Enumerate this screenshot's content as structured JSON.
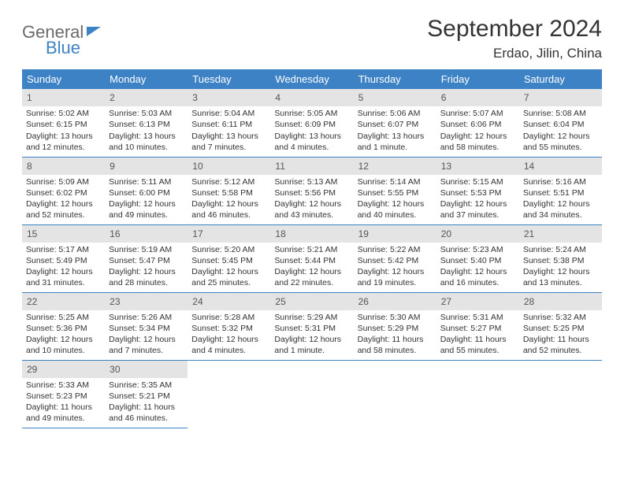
{
  "logo": {
    "line1": "General",
    "line2": "Blue"
  },
  "title": "September 2024",
  "location": "Erdao, Jilin, China",
  "weekday_headers": [
    "Sunday",
    "Monday",
    "Tuesday",
    "Wednesday",
    "Thursday",
    "Friday",
    "Saturday"
  ],
  "header_bg": "#3d82c4",
  "header_fg": "#ffffff",
  "daynum_bg": "#e4e4e4",
  "border_color": "#3d82c4",
  "weeks": [
    [
      {
        "num": "1",
        "sunrise": "Sunrise: 5:02 AM",
        "sunset": "Sunset: 6:15 PM",
        "daylight": "Daylight: 13 hours and 12 minutes."
      },
      {
        "num": "2",
        "sunrise": "Sunrise: 5:03 AM",
        "sunset": "Sunset: 6:13 PM",
        "daylight": "Daylight: 13 hours and 10 minutes."
      },
      {
        "num": "3",
        "sunrise": "Sunrise: 5:04 AM",
        "sunset": "Sunset: 6:11 PM",
        "daylight": "Daylight: 13 hours and 7 minutes."
      },
      {
        "num": "4",
        "sunrise": "Sunrise: 5:05 AM",
        "sunset": "Sunset: 6:09 PM",
        "daylight": "Daylight: 13 hours and 4 minutes."
      },
      {
        "num": "5",
        "sunrise": "Sunrise: 5:06 AM",
        "sunset": "Sunset: 6:07 PM",
        "daylight": "Daylight: 13 hours and 1 minute."
      },
      {
        "num": "6",
        "sunrise": "Sunrise: 5:07 AM",
        "sunset": "Sunset: 6:06 PM",
        "daylight": "Daylight: 12 hours and 58 minutes."
      },
      {
        "num": "7",
        "sunrise": "Sunrise: 5:08 AM",
        "sunset": "Sunset: 6:04 PM",
        "daylight": "Daylight: 12 hours and 55 minutes."
      }
    ],
    [
      {
        "num": "8",
        "sunrise": "Sunrise: 5:09 AM",
        "sunset": "Sunset: 6:02 PM",
        "daylight": "Daylight: 12 hours and 52 minutes."
      },
      {
        "num": "9",
        "sunrise": "Sunrise: 5:11 AM",
        "sunset": "Sunset: 6:00 PM",
        "daylight": "Daylight: 12 hours and 49 minutes."
      },
      {
        "num": "10",
        "sunrise": "Sunrise: 5:12 AM",
        "sunset": "Sunset: 5:58 PM",
        "daylight": "Daylight: 12 hours and 46 minutes."
      },
      {
        "num": "11",
        "sunrise": "Sunrise: 5:13 AM",
        "sunset": "Sunset: 5:56 PM",
        "daylight": "Daylight: 12 hours and 43 minutes."
      },
      {
        "num": "12",
        "sunrise": "Sunrise: 5:14 AM",
        "sunset": "Sunset: 5:55 PM",
        "daylight": "Daylight: 12 hours and 40 minutes."
      },
      {
        "num": "13",
        "sunrise": "Sunrise: 5:15 AM",
        "sunset": "Sunset: 5:53 PM",
        "daylight": "Daylight: 12 hours and 37 minutes."
      },
      {
        "num": "14",
        "sunrise": "Sunrise: 5:16 AM",
        "sunset": "Sunset: 5:51 PM",
        "daylight": "Daylight: 12 hours and 34 minutes."
      }
    ],
    [
      {
        "num": "15",
        "sunrise": "Sunrise: 5:17 AM",
        "sunset": "Sunset: 5:49 PM",
        "daylight": "Daylight: 12 hours and 31 minutes."
      },
      {
        "num": "16",
        "sunrise": "Sunrise: 5:19 AM",
        "sunset": "Sunset: 5:47 PM",
        "daylight": "Daylight: 12 hours and 28 minutes."
      },
      {
        "num": "17",
        "sunrise": "Sunrise: 5:20 AM",
        "sunset": "Sunset: 5:45 PM",
        "daylight": "Daylight: 12 hours and 25 minutes."
      },
      {
        "num": "18",
        "sunrise": "Sunrise: 5:21 AM",
        "sunset": "Sunset: 5:44 PM",
        "daylight": "Daylight: 12 hours and 22 minutes."
      },
      {
        "num": "19",
        "sunrise": "Sunrise: 5:22 AM",
        "sunset": "Sunset: 5:42 PM",
        "daylight": "Daylight: 12 hours and 19 minutes."
      },
      {
        "num": "20",
        "sunrise": "Sunrise: 5:23 AM",
        "sunset": "Sunset: 5:40 PM",
        "daylight": "Daylight: 12 hours and 16 minutes."
      },
      {
        "num": "21",
        "sunrise": "Sunrise: 5:24 AM",
        "sunset": "Sunset: 5:38 PM",
        "daylight": "Daylight: 12 hours and 13 minutes."
      }
    ],
    [
      {
        "num": "22",
        "sunrise": "Sunrise: 5:25 AM",
        "sunset": "Sunset: 5:36 PM",
        "daylight": "Daylight: 12 hours and 10 minutes."
      },
      {
        "num": "23",
        "sunrise": "Sunrise: 5:26 AM",
        "sunset": "Sunset: 5:34 PM",
        "daylight": "Daylight: 12 hours and 7 minutes."
      },
      {
        "num": "24",
        "sunrise": "Sunrise: 5:28 AM",
        "sunset": "Sunset: 5:32 PM",
        "daylight": "Daylight: 12 hours and 4 minutes."
      },
      {
        "num": "25",
        "sunrise": "Sunrise: 5:29 AM",
        "sunset": "Sunset: 5:31 PM",
        "daylight": "Daylight: 12 hours and 1 minute."
      },
      {
        "num": "26",
        "sunrise": "Sunrise: 5:30 AM",
        "sunset": "Sunset: 5:29 PM",
        "daylight": "Daylight: 11 hours and 58 minutes."
      },
      {
        "num": "27",
        "sunrise": "Sunrise: 5:31 AM",
        "sunset": "Sunset: 5:27 PM",
        "daylight": "Daylight: 11 hours and 55 minutes."
      },
      {
        "num": "28",
        "sunrise": "Sunrise: 5:32 AM",
        "sunset": "Sunset: 5:25 PM",
        "daylight": "Daylight: 11 hours and 52 minutes."
      }
    ],
    [
      {
        "num": "29",
        "sunrise": "Sunrise: 5:33 AM",
        "sunset": "Sunset: 5:23 PM",
        "daylight": "Daylight: 11 hours and 49 minutes."
      },
      {
        "num": "30",
        "sunrise": "Sunrise: 5:35 AM",
        "sunset": "Sunset: 5:21 PM",
        "daylight": "Daylight: 11 hours and 46 minutes."
      },
      null,
      null,
      null,
      null,
      null
    ]
  ]
}
